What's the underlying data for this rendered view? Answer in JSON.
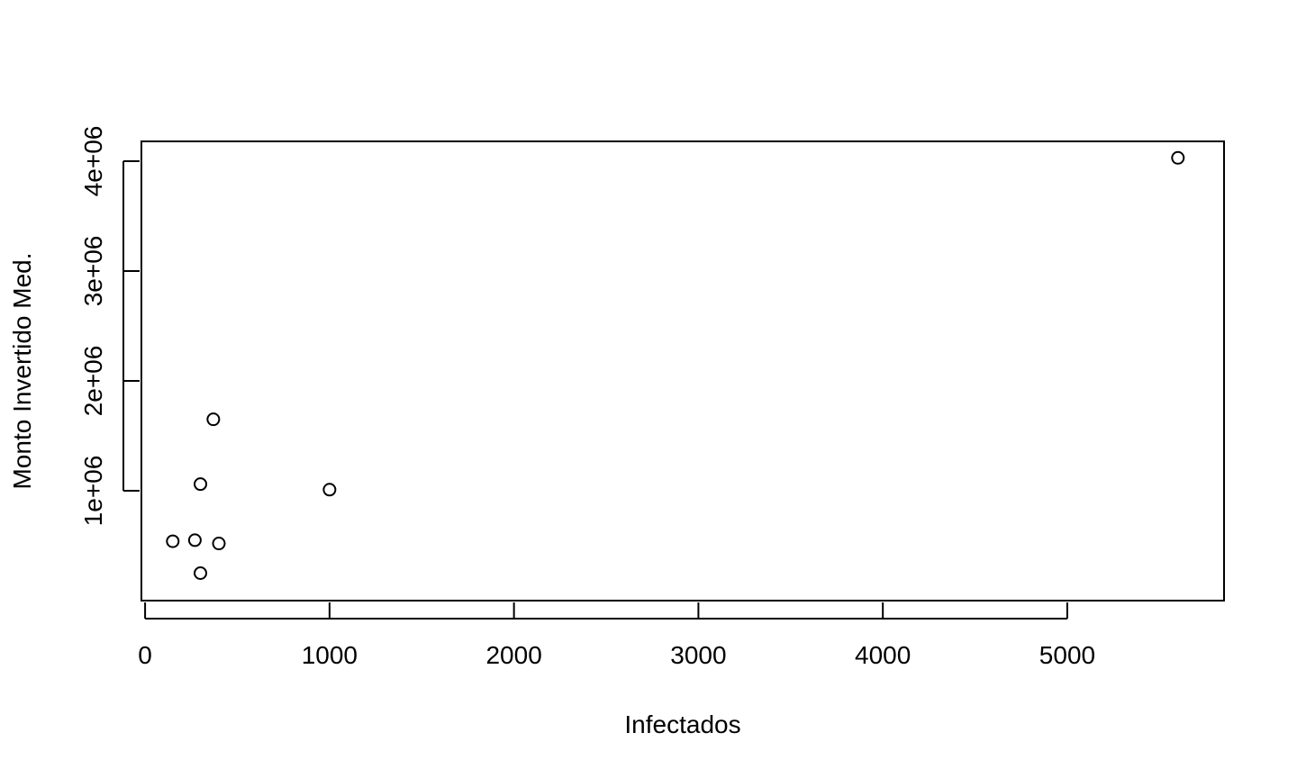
{
  "chart_data": {
    "type": "scatter",
    "title": "",
    "xlabel": "Infectados",
    "ylabel": "Monto Invertido Med.",
    "xlim": [
      -20,
      5850
    ],
    "ylim": [
      0,
      4180000
    ],
    "x_ticks": [
      0,
      1000,
      2000,
      3000,
      4000,
      5000
    ],
    "x_tick_labels": [
      "0",
      "1000",
      "2000",
      "3000",
      "4000",
      "5000"
    ],
    "y_ticks": [
      1000000,
      2000000,
      3000000,
      4000000
    ],
    "y_tick_labels": [
      "1e+06",
      "2e+06",
      "3e+06",
      "4e+06"
    ],
    "grid": false,
    "legend": "none",
    "marker": "open-circle",
    "points": [
      {
        "x": 150,
        "y": 540000
      },
      {
        "x": 270,
        "y": 550000
      },
      {
        "x": 300,
        "y": 1060000
      },
      {
        "x": 300,
        "y": 250000
      },
      {
        "x": 370,
        "y": 1650000
      },
      {
        "x": 400,
        "y": 520000
      },
      {
        "x": 1000,
        "y": 1010000
      },
      {
        "x": 5600,
        "y": 4030000
      }
    ]
  }
}
